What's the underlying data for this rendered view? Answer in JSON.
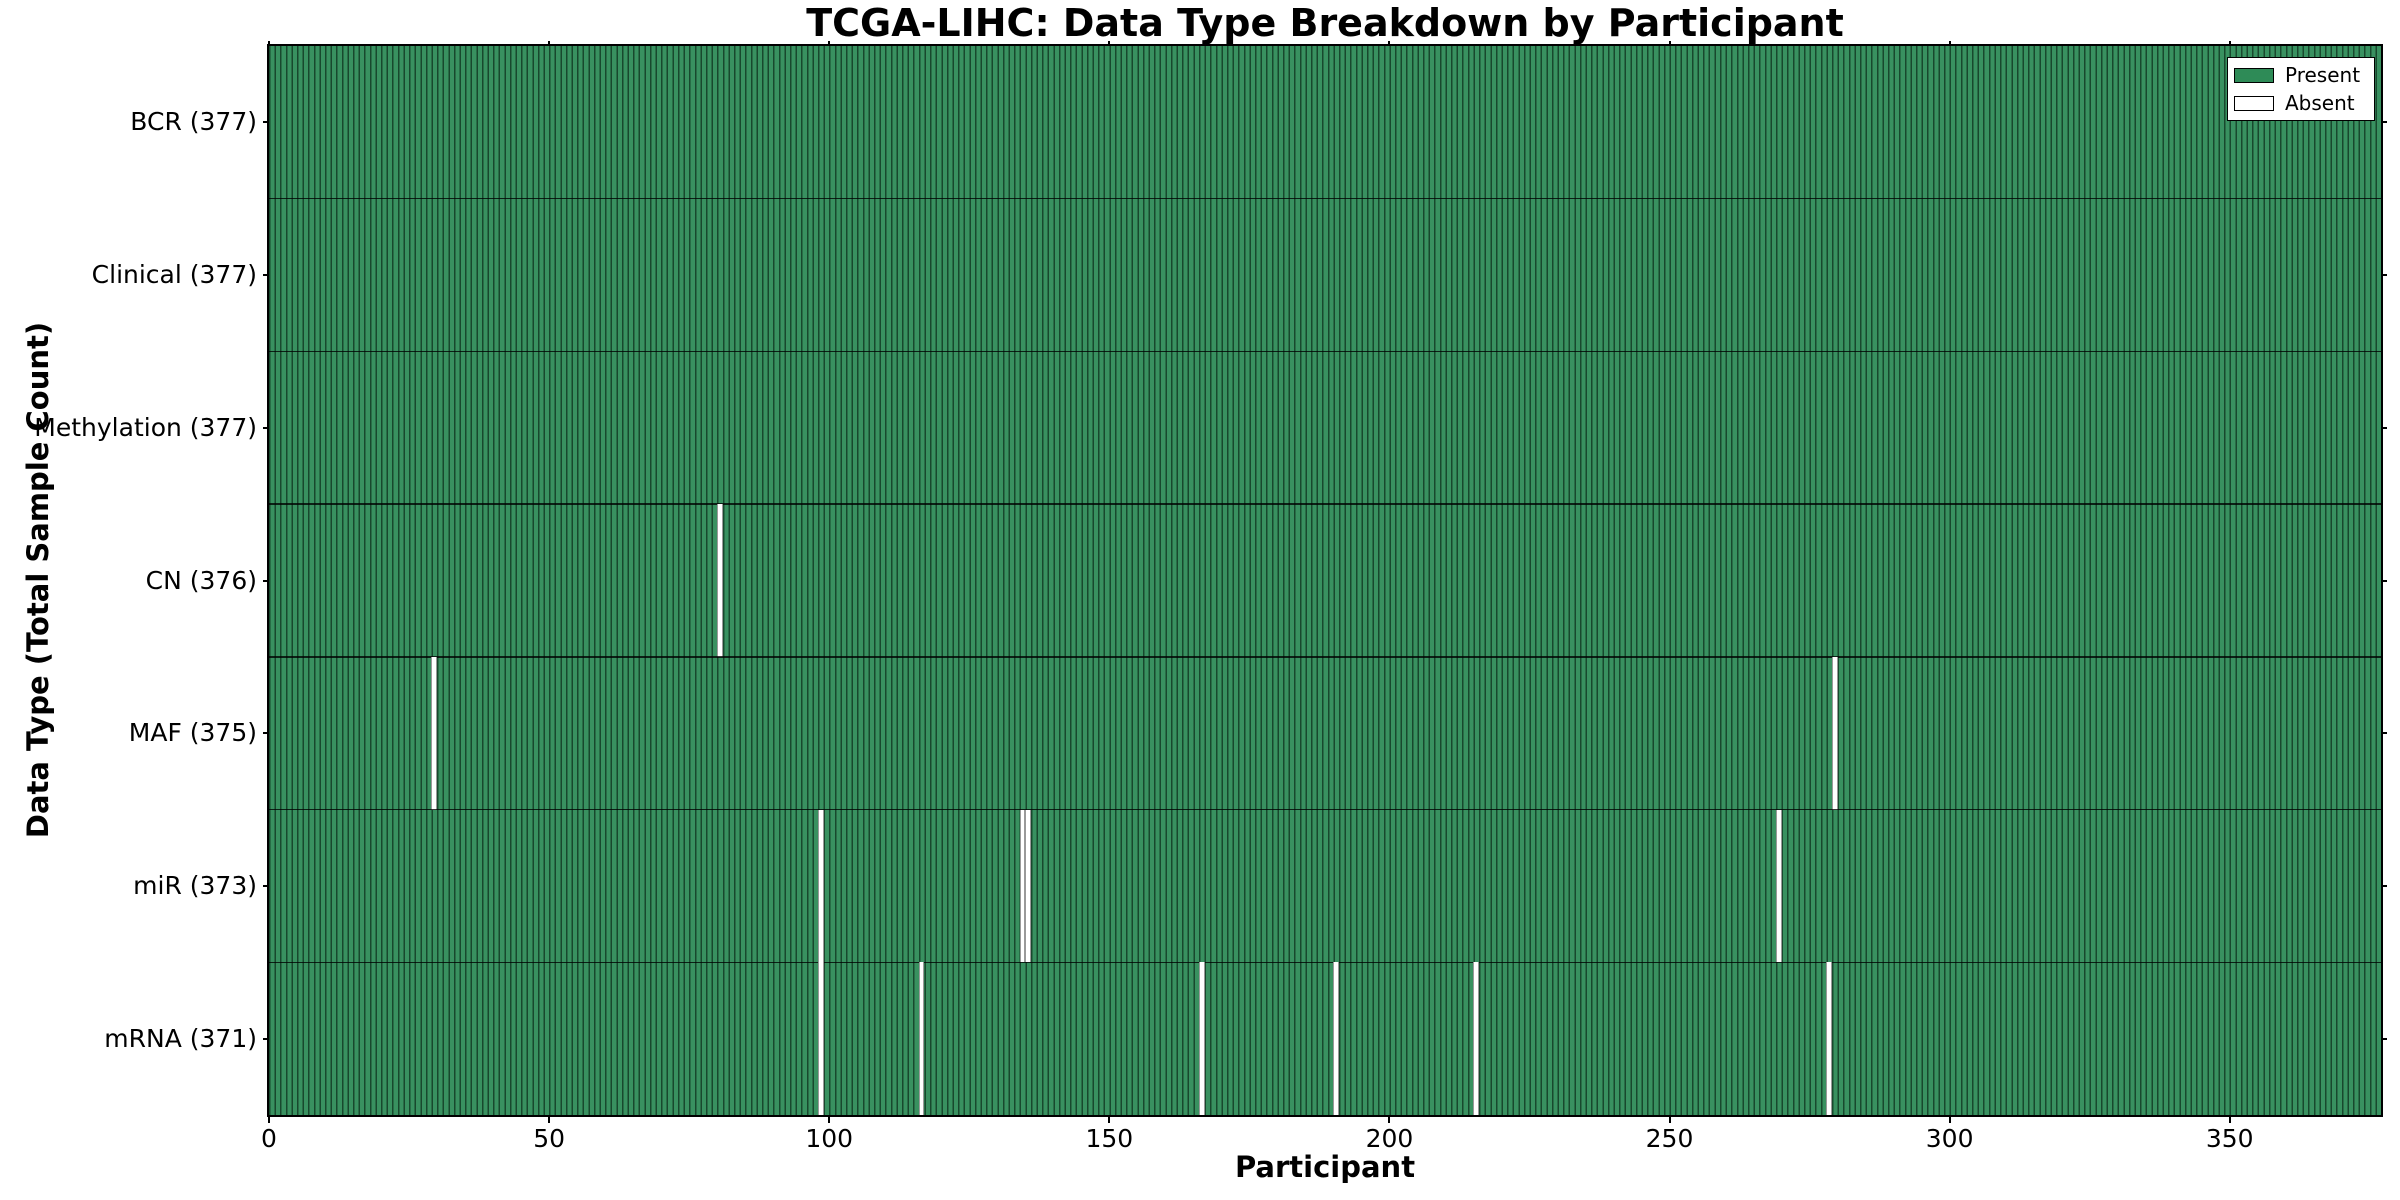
{
  "title": "TCGA-LIHC: Data Type Breakdown by Participant",
  "axes": {
    "x_label": "Participant",
    "y_label": "Data Type (Total Sample Count)",
    "x_tick_values": [
      0,
      50,
      100,
      150,
      200,
      250,
      300,
      350
    ],
    "x_tick_labels": [
      "0",
      "50",
      "100",
      "150",
      "200",
      "250",
      "300",
      "350"
    ],
    "x_range": [
      0,
      377
    ]
  },
  "legend": {
    "items": [
      {
        "label": "Present",
        "color": "#2e8b57"
      },
      {
        "label": "Absent",
        "color": "#ffffff"
      }
    ]
  },
  "colors": {
    "present": "#2e8b57",
    "absent": "#ffffff",
    "cell_edge": "rgba(0,0,0,0.48)",
    "row_separator": "rgba(0,0,0,0.78)",
    "spine": "#000000",
    "background": "#ffffff"
  },
  "chart_data": {
    "type": "heatmap",
    "title": "TCGA-LIHC: Data Type Breakdown by Participant",
    "xlabel": "Participant",
    "ylabel": "Data Type (Total Sample Count)",
    "x_range": [
      0,
      377
    ],
    "n_participants": 377,
    "x_ticks": [
      0,
      50,
      100,
      150,
      200,
      250,
      300,
      350
    ],
    "legend": [
      "Present",
      "Absent"
    ],
    "legend_position": "upper right",
    "grid": false,
    "cell_encoding": "each row is fully Present (green) except the listed absent participant indices (white)",
    "rows": [
      {
        "label": "BCR",
        "total": 377,
        "display": "BCR (377)",
        "absent_participants": []
      },
      {
        "label": "Clinical",
        "total": 377,
        "display": "Clinical (377)",
        "absent_participants": []
      },
      {
        "label": "Methylation",
        "total": 377,
        "display": "Methylation (377)",
        "absent_participants": []
      },
      {
        "label": "CN",
        "total": 376,
        "display": "CN (376)",
        "absent_participants": [
          80
        ]
      },
      {
        "label": "MAF",
        "total": 375,
        "display": "MAF (375)",
        "absent_participants": [
          29,
          279
        ]
      },
      {
        "label": "miR",
        "total": 373,
        "display": "miR (373)",
        "absent_participants": [
          98,
          134,
          135,
          269
        ]
      },
      {
        "label": "mRNA",
        "total": 371,
        "display": "mRNA (371)",
        "absent_participants": [
          98,
          116,
          166,
          190,
          215,
          278
        ]
      }
    ]
  }
}
